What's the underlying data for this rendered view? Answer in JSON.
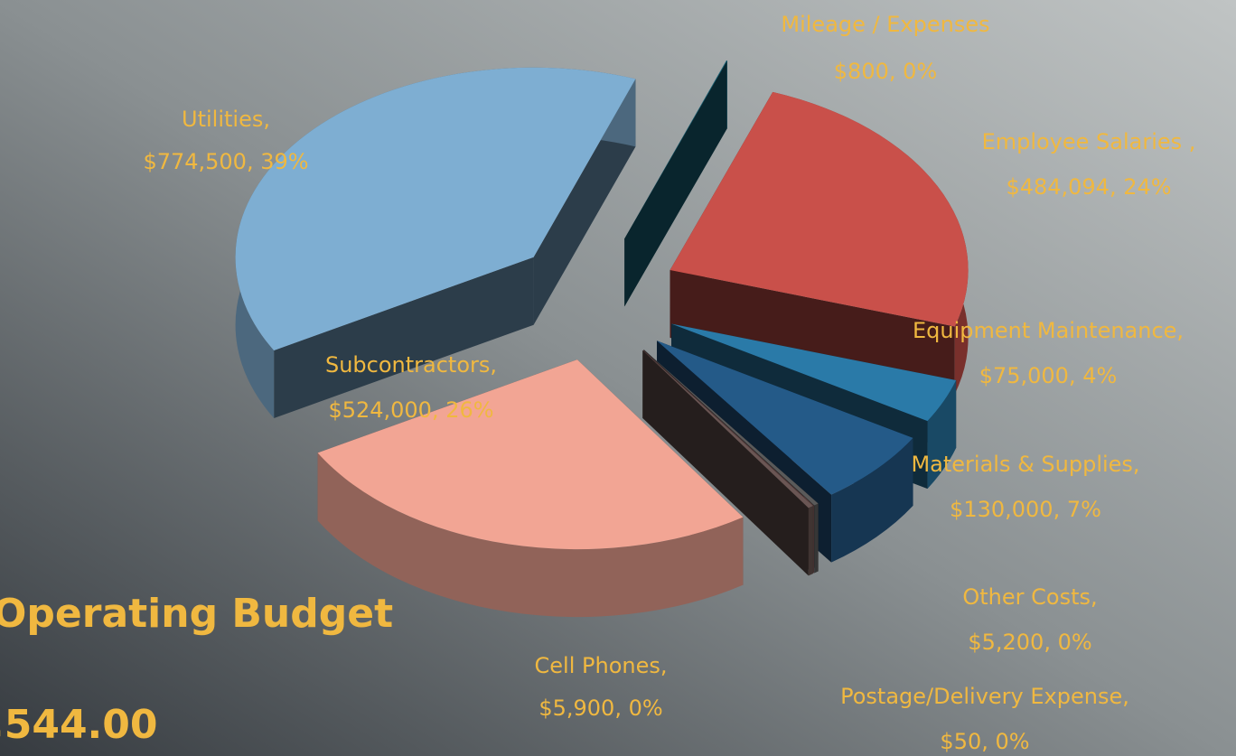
{
  "chart_data": {
    "type": "pie",
    "title": "Operating Budget",
    "subtitle": ",544.00",
    "categories": [
      "Mileage / Expenses",
      "Employee Salaries ,",
      "Equipment Maintenance,",
      "Materials & Supplies,",
      "Other Costs,",
      "Postage/Delivery Expense,",
      "Cell Phones,",
      "Subcontractors,",
      "Utilities,"
    ],
    "values": [
      800,
      484094,
      75000,
      130000,
      5200,
      50,
      5900,
      524000,
      774500
    ],
    "value_labels": [
      "$800, 0%",
      "$484,094, 24%",
      "$75,000, 4%",
      "$130,000, 7%",
      "$5,200, 0%",
      "$50, 0%",
      "$5,900, 0%",
      "$524,000, 26%",
      "$774,500, 39%"
    ],
    "colors": [
      "#1a6a80",
      "#c9504a",
      "#2a7aa8",
      "#245a88",
      "#5a5a5a",
      "#e6a0a0",
      "#6a5654",
      "#f2a594",
      "#7eaed2"
    ]
  }
}
